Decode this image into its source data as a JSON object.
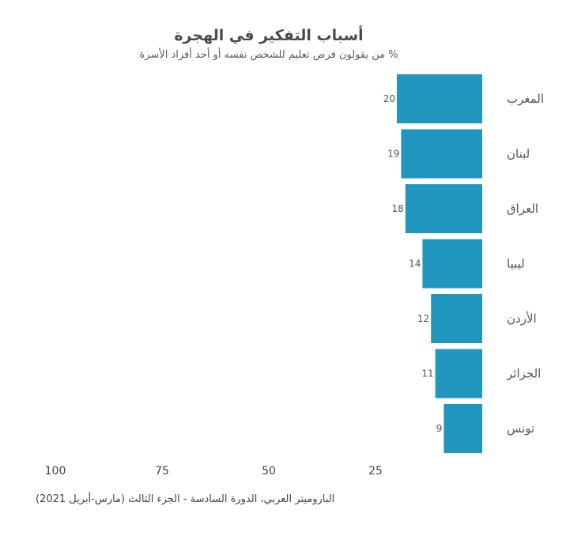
{
  "chart_data": {
    "type": "bar",
    "orientation": "horizontal",
    "title": "أسباب التفكير في الهجرة",
    "subtitle": "% من يقولون فرص تعليم للشخص نفسه أو أحد أفراد الأسرة",
    "categories": [
      "المغرب",
      "لبنان",
      "العراق",
      "ليبيا",
      "الأردن",
      "الجزائر",
      "تونس"
    ],
    "values": [
      20,
      19,
      18,
      14,
      12,
      11,
      9
    ],
    "value_labels": [
      "20",
      "19",
      "18",
      "14",
      "12",
      "11",
      "9"
    ],
    "x_ticks": [
      100,
      75,
      50,
      25
    ],
    "x_tick_labels": [
      "100",
      "75",
      "50",
      "25"
    ],
    "xlim": [
      0,
      100
    ],
    "x_reversed": true,
    "bar_color": "#2196be",
    "grid": false,
    "legend": "none"
  },
  "source": "البارومیتر العربي، الدورة السادسة - الجزء الثالث (مارس-أبريل 2021)"
}
